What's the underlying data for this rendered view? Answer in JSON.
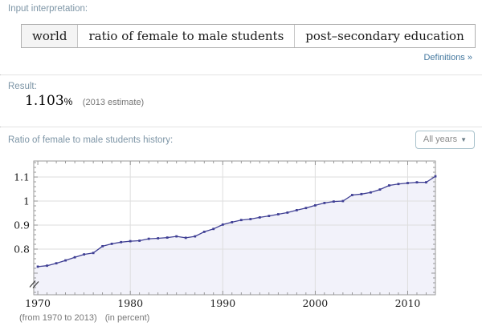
{
  "pods": {
    "input_interpretation": {
      "title": "Input interpretation:",
      "cells": [
        "world",
        "ratio of female to male students",
        "post–secondary education"
      ],
      "definitions_link": "Definitions »"
    },
    "result": {
      "title": "Result:",
      "value": "1.103",
      "unit": "%",
      "note": "(2013 estimate)"
    },
    "history": {
      "title": "Ratio of female to male students history:",
      "dropdown": {
        "label": "All years",
        "caret": "▼"
      },
      "caption_range": "(from 1970 to 2013)",
      "caption_unit": "(in percent)"
    }
  },
  "colors": {
    "pod_title": "#7d95a6",
    "link": "#44789f",
    "grid": "#dedede",
    "frame": "#999999",
    "tick": "#808080",
    "axis_break": "#333333",
    "muted_text": "#777777"
  },
  "chart_data": {
    "type": "line",
    "title": "Ratio of female to male students history",
    "series_name": "ratio of female to male students, world, post-secondary education",
    "x": [
      1970,
      1971,
      1972,
      1973,
      1974,
      1975,
      1976,
      1977,
      1978,
      1979,
      1980,
      1981,
      1982,
      1983,
      1984,
      1985,
      1986,
      1987,
      1988,
      1989,
      1990,
      1991,
      1992,
      1993,
      1994,
      1995,
      1996,
      1997,
      1998,
      1999,
      2000,
      2001,
      2002,
      2003,
      2004,
      2005,
      2006,
      2007,
      2008,
      2009,
      2010,
      2011,
      2012,
      2013
    ],
    "values": [
      0.727,
      0.731,
      0.741,
      0.753,
      0.766,
      0.778,
      0.784,
      0.812,
      0.822,
      0.829,
      0.833,
      0.835,
      0.843,
      0.845,
      0.848,
      0.853,
      0.847,
      0.853,
      0.872,
      0.884,
      0.902,
      0.912,
      0.921,
      0.925,
      0.932,
      0.938,
      0.945,
      0.952,
      0.962,
      0.971,
      0.982,
      0.992,
      0.998,
      1.0,
      1.025,
      1.029,
      1.036,
      1.048,
      1.065,
      1.071,
      1.075,
      1.078,
      1.078,
      1.103
    ],
    "xlabel": "",
    "ylabel": "",
    "x_tick_labels": [
      1970,
      1980,
      1990,
      2000,
      2010
    ],
    "y_tick_values": [
      0.8,
      0.9,
      1.0,
      1.1
    ],
    "y_tick_labels": [
      "0.8",
      "0.9",
      "1",
      "1.1"
    ],
    "xlim": [
      1969.56,
      2013
    ],
    "ylim": [
      0.61,
      1.1667
    ],
    "axis_break_at_y": 0.655,
    "grid": true,
    "legend": "none",
    "markers": true,
    "line_color": "#3f3f94",
    "fill_color": "#f2f2fa"
  }
}
